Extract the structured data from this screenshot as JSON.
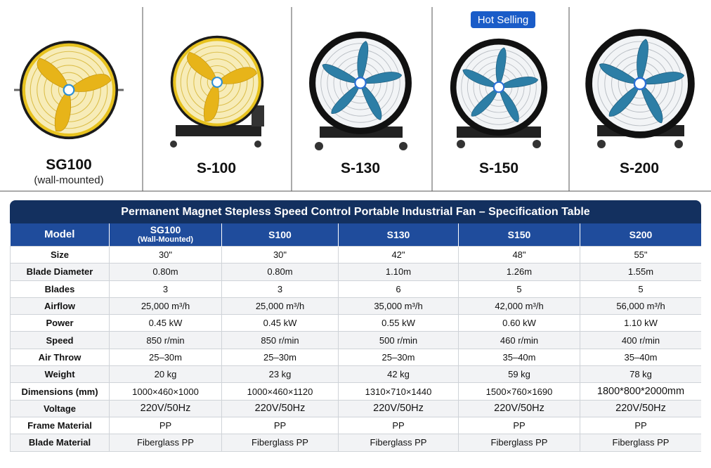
{
  "products": [
    {
      "name": "SG100",
      "note": "(wall-mounted)"
    },
    {
      "name": "S-100"
    },
    {
      "name": "S-130"
    },
    {
      "name": "S-150",
      "badge": "Hot Selling"
    },
    {
      "name": "S-200"
    }
  ],
  "table": {
    "title": "Permanent Magnet Stepless Speed Control Portable Industrial Fan – Specification Table",
    "header": [
      "Model",
      "SG100",
      "S100",
      "S130",
      "S150",
      "S200"
    ],
    "header_note": "(Wall-Mounted)",
    "rows": [
      [
        "Size",
        "30\"",
        "30\"",
        "42\"",
        "48\"",
        "55\""
      ],
      [
        "Blade Diameter",
        "0.80m",
        "0.80m",
        "1.10m",
        "1.26m",
        "1.55m"
      ],
      [
        "Blades",
        "3",
        "3",
        "6",
        "5",
        "5"
      ],
      [
        "Airflow",
        "25,000 m³/h",
        "25,000 m³/h",
        "35,000 m³/h",
        "42,000 m³/h",
        "56,000 m³/h"
      ],
      [
        "Power",
        "0.45 kW",
        "0.45 kW",
        "0.55 kW",
        "0.60 kW",
        "1.10 kW"
      ],
      [
        "Speed",
        "850 r/min",
        "850 r/min",
        "500 r/min",
        "460 r/min",
        "400 r/min"
      ],
      [
        "Air Throw",
        "25–30m",
        "25–30m",
        "25–30m",
        "35–40m",
        "35–40m"
      ],
      [
        "Weight",
        "20 kg",
        "23 kg",
        "42 kg",
        "59 kg",
        "78 kg"
      ],
      [
        "Dimensions (mm)",
        "1000×460×1000",
        "1000×460×1120",
        "1310×710×1440",
        "1500×760×1690",
        "1800*800*2000mm"
      ],
      [
        "Voltage",
        "220V/50Hz",
        "220V/50Hz",
        "220V/50Hz",
        "220V/50Hz",
        "220V/50Hz"
      ],
      [
        "Frame Material",
        "PP",
        "PP",
        "PP",
        "PP",
        "PP"
      ],
      [
        "Blade Material",
        "Fiberglass PP",
        "Fiberglass PP",
        "Fiberglass PP",
        "Fiberglass PP",
        "Fiberglass PP"
      ]
    ]
  }
}
